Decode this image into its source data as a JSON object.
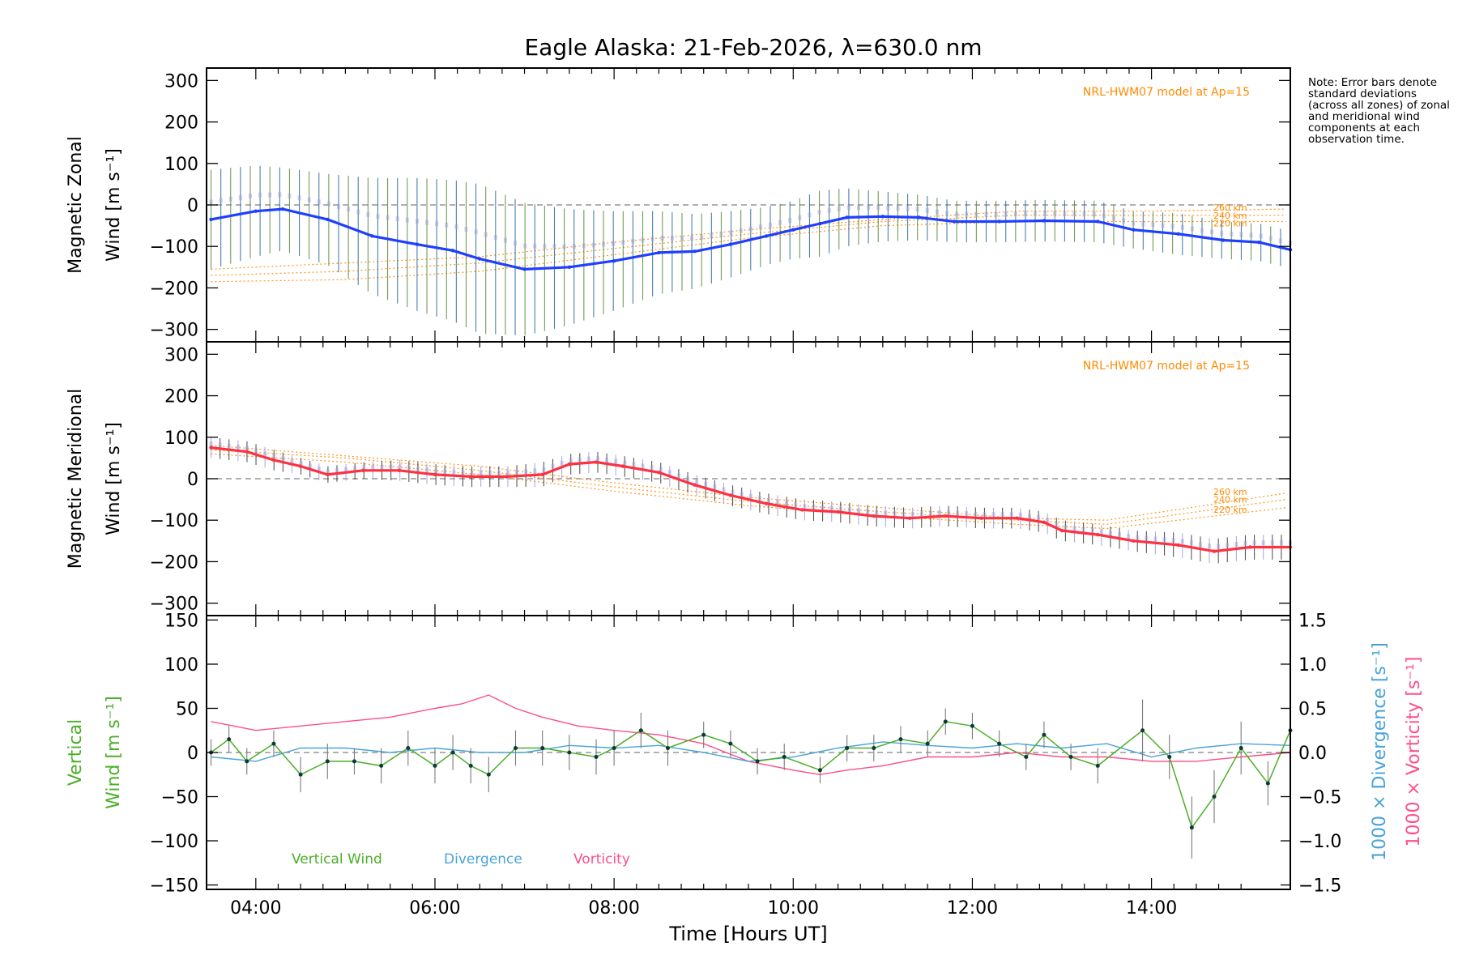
{
  "title": "Eagle Alaska: 21-Feb-2026, λ=630.0 nm",
  "note": "Note: Error bars denote standard deviations (across all zones) of zonal and meridional wind components at each observation time.",
  "colors": {
    "zonal": "#1f3fff",
    "meridional": "#ff3040",
    "vertical": "#4caf28",
    "divergence": "#4aa3d8",
    "vorticity": "#ff4d8a",
    "model": "#ff8a00",
    "errbar_zonal": "#2a6a9a",
    "errbar_zones": "#9f9fe0",
    "zero": "#808080"
  },
  "chart_data": [
    {
      "type": "line",
      "panel": "zonal",
      "ylabel_line1": "Magnetic Zonal",
      "ylabel_line2": "Wind [m s⁻¹]",
      "ylim": [
        -330,
        330
      ],
      "xlim": [
        3.45,
        15.55
      ],
      "yticks": [
        "300",
        "200",
        "100",
        "0",
        "−100",
        "−200",
        "−300"
      ],
      "ytick_values": [
        300,
        200,
        100,
        0,
        -100,
        -200,
        -300
      ],
      "model_label": "NRL-HWM07 model at Ap=15",
      "model_levels": [
        "260 km",
        "240 km",
        "220 km"
      ],
      "model_series": [
        {
          "name": "260 km",
          "x": [
            3.5,
            5,
            6.5,
            8,
            9.5,
            11,
            12.5,
            14,
            15.5
          ],
          "values": [
            -155,
            -140,
            -125,
            -90,
            -60,
            -35,
            -15,
            -15,
            -10
          ]
        },
        {
          "name": "240 km",
          "x": [
            3.5,
            5,
            6.5,
            8,
            9.5,
            11,
            12.5,
            14,
            15.5
          ],
          "values": [
            -170,
            -160,
            -140,
            -105,
            -70,
            -40,
            -25,
            -25,
            -25
          ]
        },
        {
          "name": "220 km",
          "x": [
            3.5,
            5,
            6.5,
            8,
            9.5,
            11,
            12.5,
            14,
            15.5
          ],
          "values": [
            -185,
            -180,
            -160,
            -120,
            -80,
            -50,
            -40,
            -40,
            -40
          ]
        }
      ],
      "x": [
        3.5,
        4.0,
        4.3,
        4.8,
        5.3,
        5.8,
        6.2,
        6.5,
        7.0,
        7.5,
        8.0,
        8.5,
        8.9,
        9.3,
        9.7,
        10.0,
        10.3,
        10.6,
        11.0,
        11.4,
        11.8,
        12.3,
        12.8,
        13.4,
        13.8,
        14.3,
        14.8,
        15.2,
        15.55
      ],
      "values": [
        -35,
        -15,
        -10,
        -35,
        -75,
        -95,
        -110,
        -130,
        -155,
        -150,
        -135,
        -115,
        -112,
        -95,
        -75,
        -60,
        -45,
        -30,
        -28,
        -30,
        -40,
        -40,
        -38,
        -40,
        -60,
        -70,
        -85,
        -90,
        -108
      ],
      "error": [
        120,
        110,
        100,
        110,
        140,
        160,
        170,
        180,
        160,
        140,
        120,
        100,
        90,
        80,
        70,
        70,
        80,
        70,
        60,
        55,
        50,
        50,
        50,
        50,
        45,
        50,
        45,
        45,
        45
      ]
    },
    {
      "type": "line",
      "panel": "meridional",
      "ylabel_line1": "Magnetic Meridional",
      "ylabel_line2": "Wind [m s⁻¹]",
      "ylim": [
        -330,
        330
      ],
      "xlim": [
        3.45,
        15.55
      ],
      "yticks": [
        "300",
        "200",
        "100",
        "0",
        "−100",
        "−200",
        "−300"
      ],
      "ytick_values": [
        300,
        200,
        100,
        0,
        -100,
        -200,
        -300
      ],
      "model_label": "NRL-HWM07 model at Ap=15",
      "model_levels": [
        "260 km",
        "240 km",
        "220 km"
      ],
      "model_series": [
        {
          "name": "260 km",
          "x": [
            3.5,
            5,
            6.5,
            8,
            9.5,
            11,
            12.5,
            13.5,
            15.5
          ],
          "values": [
            80,
            55,
            30,
            -10,
            -45,
            -70,
            -95,
            -100,
            -35
          ]
        },
        {
          "name": "240 km",
          "x": [
            3.5,
            5,
            6.5,
            8,
            9.5,
            11,
            12.5,
            13.5,
            15.5
          ],
          "values": [
            70,
            50,
            20,
            -20,
            -55,
            -80,
            -100,
            -110,
            -50
          ]
        },
        {
          "name": "220 km",
          "x": [
            3.5,
            5,
            6.5,
            8,
            9.5,
            11,
            12.5,
            13.5,
            15.5
          ],
          "values": [
            60,
            40,
            10,
            -30,
            -65,
            -90,
            -110,
            -120,
            -70
          ]
        }
      ],
      "x": [
        3.5,
        3.9,
        4.2,
        4.5,
        4.8,
        5.2,
        5.6,
        6.0,
        6.4,
        6.8,
        7.2,
        7.5,
        7.8,
        8.1,
        8.5,
        8.9,
        9.3,
        9.7,
        10.1,
        10.5,
        10.9,
        11.3,
        11.7,
        12.1,
        12.5,
        12.8,
        13.0,
        13.4,
        13.8,
        14.3,
        14.7,
        15.1,
        15.55
      ],
      "values": [
        75,
        65,
        45,
        30,
        10,
        20,
        20,
        10,
        5,
        5,
        10,
        35,
        40,
        30,
        15,
        -15,
        -40,
        -60,
        -75,
        -80,
        -90,
        -95,
        -90,
        -95,
        -95,
        -105,
        -125,
        -135,
        -150,
        -160,
        -175,
        -165,
        -165
      ],
      "error": [
        25,
        25,
        25,
        20,
        20,
        20,
        25,
        25,
        25,
        25,
        30,
        25,
        25,
        25,
        25,
        25,
        25,
        25,
        25,
        25,
        25,
        25,
        25,
        25,
        25,
        25,
        25,
        25,
        25,
        30,
        30,
        30,
        30
      ]
    },
    {
      "type": "line",
      "panel": "vertical",
      "ylabel_line1": "Vertical",
      "ylabel_line2": "Wind [m s⁻¹]",
      "ylim": [
        -155,
        155
      ],
      "xlim": [
        3.45,
        15.55
      ],
      "yticks": [
        "150",
        "100",
        "50",
        "0",
        "−50",
        "−100",
        "−150"
      ],
      "ytick_values": [
        150,
        100,
        50,
        0,
        -50,
        -100,
        -150
      ],
      "right_yticks": [
        "1.5",
        "1.0",
        "0.5",
        "0.0",
        "−0.5",
        "−1.0",
        "−1.5"
      ],
      "right_ytick_values": [
        1.5,
        1.0,
        0.5,
        0.0,
        -0.5,
        -1.0,
        -1.5
      ],
      "right_ylabel_divergence": "1000 × Divergence [s⁻¹]",
      "right_ylabel_vorticity": "1000 × Vorticity [s⁻¹]",
      "xticks": [
        "04:00",
        "06:00",
        "08:00",
        "10:00",
        "12:00",
        "14:00"
      ],
      "xtick_values": [
        4,
        6,
        8,
        10,
        12,
        14
      ],
      "xlabel": "Time [Hours UT]",
      "legend": [
        "Vertical Wind",
        "Divergence",
        "Vorticity"
      ],
      "series": [
        {
          "name": "Vertical Wind",
          "x": [
            3.5,
            3.7,
            3.9,
            4.2,
            4.5,
            4.8,
            5.1,
            5.4,
            5.7,
            6.0,
            6.2,
            6.4,
            6.6,
            6.9,
            7.2,
            7.5,
            7.8,
            8.0,
            8.3,
            8.6,
            9.0,
            9.3,
            9.6,
            9.9,
            10.3,
            10.6,
            10.9,
            11.2,
            11.5,
            11.7,
            12.0,
            12.3,
            12.6,
            12.8,
            13.1,
            13.4,
            13.9,
            14.2,
            14.45,
            14.7,
            15.0,
            15.3,
            15.55
          ],
          "values": [
            0,
            15,
            -10,
            10,
            -25,
            -10,
            -10,
            -15,
            5,
            -15,
            0,
            -15,
            -25,
            5,
            5,
            0,
            -5,
            5,
            25,
            5,
            20,
            10,
            -10,
            -5,
            -20,
            5,
            5,
            15,
            10,
            35,
            30,
            10,
            -5,
            20,
            -5,
            -15,
            25,
            -5,
            -85,
            -50,
            5,
            -35,
            25
          ],
          "error": [
            15,
            15,
            15,
            15,
            20,
            20,
            15,
            20,
            20,
            20,
            20,
            20,
            20,
            20,
            20,
            20,
            20,
            20,
            20,
            20,
            15,
            15,
            15,
            15,
            15,
            15,
            15,
            15,
            15,
            15,
            15,
            15,
            15,
            15,
            15,
            20,
            35,
            25,
            35,
            30,
            30,
            25,
            20
          ]
        },
        {
          "name": "Divergence",
          "axis": "right",
          "x": [
            3.5,
            4.0,
            4.5,
            5.0,
            5.5,
            6.0,
            6.5,
            7.0,
            7.5,
            8.0,
            8.5,
            9.0,
            9.5,
            10.0,
            10.5,
            11.0,
            11.5,
            12.0,
            12.5,
            13.0,
            13.5,
            14.0,
            14.5,
            15.0,
            15.55
          ],
          "values": [
            -0.05,
            -0.1,
            0.05,
            0.05,
            0.0,
            0.05,
            0.0,
            0.0,
            0.08,
            0.05,
            0.08,
            0.0,
            -0.1,
            -0.05,
            0.05,
            0.12,
            0.08,
            0.05,
            0.1,
            0.05,
            0.1,
            -0.05,
            0.05,
            0.1,
            0.08
          ]
        },
        {
          "name": "Vorticity",
          "axis": "right",
          "x": [
            3.5,
            4.0,
            4.5,
            5.0,
            5.5,
            6.0,
            6.3,
            6.6,
            6.9,
            7.2,
            7.6,
            8.0,
            8.5,
            9.0,
            9.5,
            10.0,
            10.3,
            10.6,
            11.0,
            11.5,
            12.0,
            12.5,
            13.0,
            13.5,
            14.0,
            14.5,
            15.0,
            15.55
          ],
          "values": [
            0.35,
            0.25,
            0.3,
            0.35,
            0.4,
            0.5,
            0.55,
            0.65,
            0.5,
            0.4,
            0.3,
            0.25,
            0.2,
            0.1,
            -0.1,
            -0.2,
            -0.25,
            -0.2,
            -0.15,
            -0.05,
            -0.05,
            0.0,
            -0.05,
            -0.05,
            -0.1,
            -0.1,
            -0.05,
            0.0
          ]
        }
      ]
    }
  ]
}
